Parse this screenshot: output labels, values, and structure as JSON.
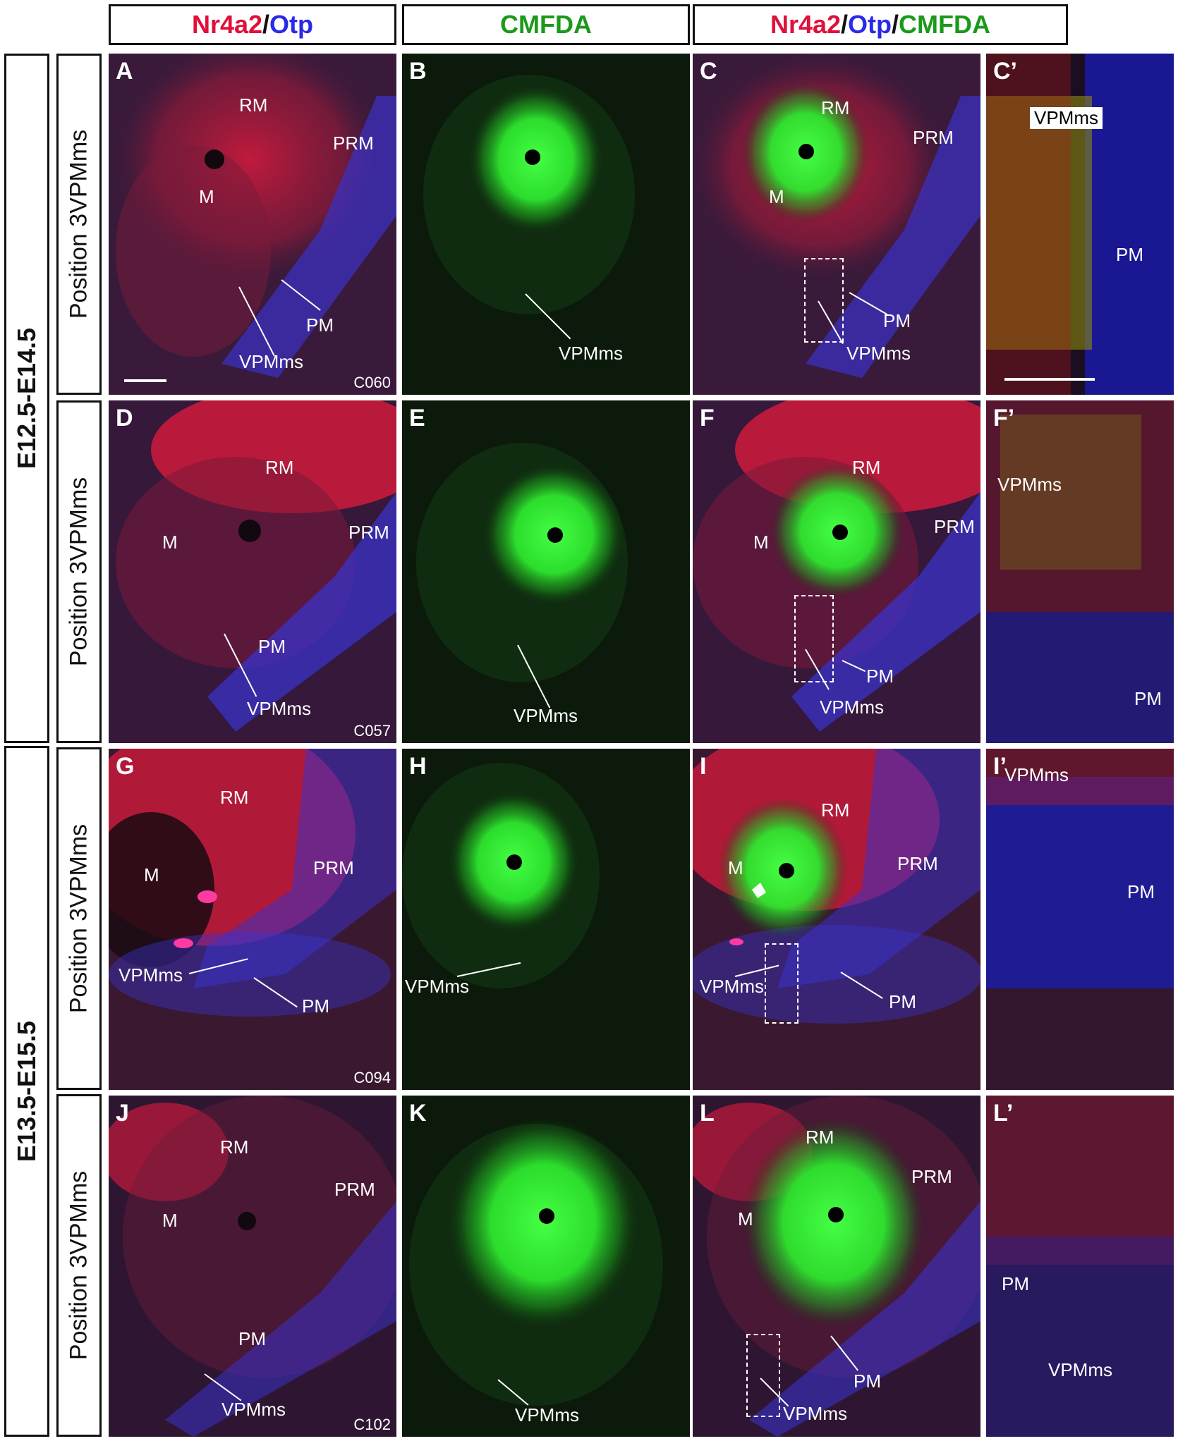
{
  "headers": {
    "col1": {
      "a": "Nr4a2",
      "sep": "/",
      "b": "Otp"
    },
    "col2": {
      "a": "CMFDA"
    },
    "col3": {
      "a": "Nr4a2",
      "sep1": "/",
      "b": "Otp",
      "sep2": "/",
      "c": "CMFDA"
    }
  },
  "groups": [
    "E12.5-E14.5",
    "E13.5-E15.5"
  ],
  "row_label": "Position 3VPMms",
  "labels": {
    "RM": "RM",
    "PRM": "PRM",
    "M": "M",
    "PM": "PM",
    "VPMms": "VPMms"
  },
  "panels": {
    "A": "A",
    "B": "B",
    "C": "C",
    "Cp": "C’",
    "D": "D",
    "E": "E",
    "F": "F",
    "Fp": "F’",
    "G": "G",
    "H": "H",
    "I": "I",
    "Ip": "I’",
    "J": "J",
    "K": "K",
    "L": "L",
    "Lp": "L’"
  },
  "codes": {
    "r1": "C060",
    "r2": "C057",
    "r3": "C094",
    "r4": "C102"
  },
  "colors": {
    "red": "#e0103a",
    "blue": "#2a2ae6",
    "green": "#1a9a1a",
    "signal_green": "#39ff39"
  }
}
